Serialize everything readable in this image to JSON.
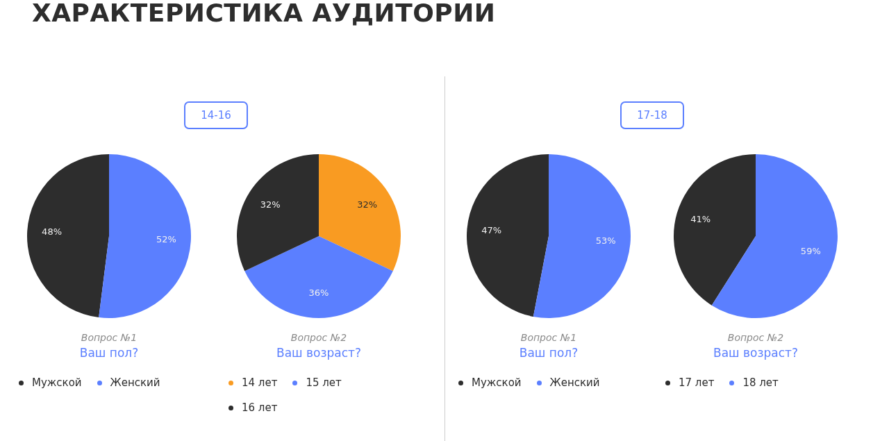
{
  "chart_data": [
    {
      "type": "other",
      "title": "ХАРАКТЕРИСТИКА АУДИТОРИИ",
      "annotations": [
        "14-16",
        "17-18"
      ]
    },
    {
      "type": "pie",
      "subtitle": "Вопрос №1",
      "title": "Ваш пол?",
      "categories": [
        "Мужской",
        "Женский"
      ],
      "values": [
        48,
        52
      ],
      "colors": [
        "#2d2d2d",
        "#5b7fff"
      ],
      "value_labels": [
        "48%",
        "52%"
      ],
      "legend": "bottom"
    },
    {
      "type": "pie",
      "subtitle": "Вопрос №2",
      "title": "Ваш возраст?",
      "categories": [
        "14 лет",
        "15 лет",
        "16 лет"
      ],
      "values": [
        32,
        36,
        32
      ],
      "colors": [
        "#f99b22",
        "#5b7fff",
        "#2d2d2d"
      ],
      "value_labels": [
        "32%",
        "36%",
        "32%"
      ],
      "legend": "bottom"
    },
    {
      "type": "pie",
      "subtitle": "Вопрос №1",
      "title": "Ваш пол?",
      "categories": [
        "Мужской",
        "Женский"
      ],
      "values": [
        47,
        53
      ],
      "colors": [
        "#2d2d2d",
        "#5b7fff"
      ],
      "value_labels": [
        "47%",
        "53%"
      ],
      "legend": "bottom"
    },
    {
      "type": "pie",
      "subtitle": "Вопрос №2",
      "title": "Ваш возраст?",
      "categories": [
        "17 лет",
        "18 лет"
      ],
      "values": [
        41,
        59
      ],
      "colors": [
        "#2d2d2d",
        "#5b7fff"
      ],
      "value_labels": [
        "41%",
        "59%"
      ],
      "legend": "bottom"
    }
  ]
}
